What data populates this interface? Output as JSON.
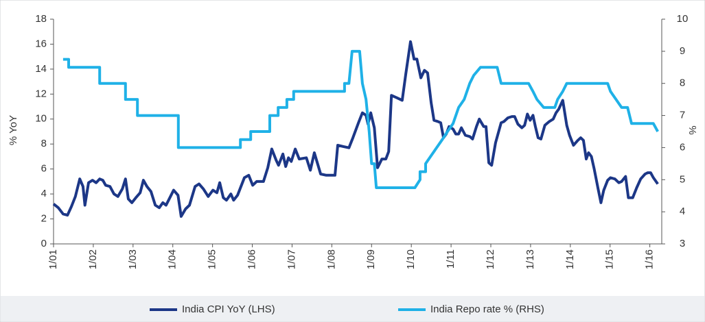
{
  "chart_data": {
    "type": "line",
    "y_label": "% YoY",
    "y2_label": "%",
    "xlim": [
      2001,
      2016.3
    ],
    "xticks": [
      {
        "value": 2001,
        "label": "1/01"
      },
      {
        "value": 2002,
        "label": "1/02"
      },
      {
        "value": 2003,
        "label": "1/03"
      },
      {
        "value": 2004,
        "label": "1/04"
      },
      {
        "value": 2005,
        "label": "1/05"
      },
      {
        "value": 2006,
        "label": "1/06"
      },
      {
        "value": 2007,
        "label": "1/07"
      },
      {
        "value": 2008,
        "label": "1/08"
      },
      {
        "value": 2009,
        "label": "1/09"
      },
      {
        "value": 2010,
        "label": "1/10"
      },
      {
        "value": 2011,
        "label": "1/11"
      },
      {
        "value": 2012,
        "label": "1/12"
      },
      {
        "value": 2013,
        "label": "1/13"
      },
      {
        "value": 2014,
        "label": "1/14"
      },
      {
        "value": 2015,
        "label": "1/15"
      },
      {
        "value": 2016,
        "label": "1/16"
      }
    ],
    "ylim": [
      0,
      18
    ],
    "yticks": [
      0,
      2,
      4,
      6,
      8,
      10,
      12,
      14,
      16,
      18
    ],
    "y2lim": [
      3,
      10
    ],
    "y2ticks": [
      3,
      4,
      5,
      6,
      7,
      8,
      9,
      10
    ],
    "series": [
      {
        "name": "India CPI YoY (LHS)",
        "color": "#1c3787",
        "x": [
          2001.0,
          2001.12,
          2001.24,
          2001.35,
          2001.45,
          2001.55,
          2001.66,
          2001.74,
          2001.79,
          2001.88,
          2001.98,
          2002.07,
          2002.16,
          2002.24,
          2002.31,
          2002.42,
          2002.52,
          2002.62,
          2002.73,
          2002.81,
          2002.88,
          2002.97,
          2003.07,
          2003.18,
          2003.26,
          2003.35,
          2003.45,
          2003.56,
          2003.66,
          2003.75,
          2003.83,
          2003.94,
          2004.02,
          2004.13,
          2004.21,
          2004.32,
          2004.42,
          2004.56,
          2004.66,
          2004.77,
          2004.89,
          2005.01,
          2005.11,
          2005.18,
          2005.27,
          2005.35,
          2005.46,
          2005.53,
          2005.63,
          2005.8,
          2005.91,
          2006.01,
          2006.11,
          2006.28,
          2006.39,
          2006.49,
          2006.6,
          2006.66,
          2006.77,
          2006.84,
          2006.91,
          2006.98,
          2007.08,
          2007.18,
          2007.36,
          2007.46,
          2007.56,
          2007.72,
          2007.86,
          2008.08,
          2008.15,
          2008.29,
          2008.43,
          2008.53,
          2008.67,
          2008.77,
          2008.86,
          2008.91,
          2008.98,
          2009.07,
          2009.15,
          2009.26,
          2009.36,
          2009.43,
          2009.5,
          2009.64,
          2009.77,
          2009.86,
          2009.98,
          2010.07,
          2010.14,
          2010.24,
          2010.33,
          2010.41,
          2010.5,
          2010.57,
          2010.67,
          2010.74,
          2010.81,
          2010.88,
          2010.95,
          2011.05,
          2011.12,
          2011.19,
          2011.26,
          2011.36,
          2011.47,
          2011.54,
          2011.64,
          2011.71,
          2011.82,
          2011.88,
          2011.95,
          2012.02,
          2012.12,
          2012.26,
          2012.33,
          2012.43,
          2012.53,
          2012.6,
          2012.68,
          2012.78,
          2012.85,
          2012.92,
          2012.99,
          2013.06,
          2013.12,
          2013.19,
          2013.26,
          2013.36,
          2013.47,
          2013.57,
          2013.64,
          2013.71,
          2013.81,
          2013.91,
          2013.98,
          2014.08,
          2014.19,
          2014.26,
          2014.33,
          2014.4,
          2014.46,
          2014.53,
          2014.6,
          2014.7,
          2014.77,
          2014.84,
          2014.94,
          2015.01,
          2015.12,
          2015.22,
          2015.29,
          2015.39,
          2015.46,
          2015.57,
          2015.67,
          2015.77,
          2015.88,
          2015.95,
          2016.02,
          2016.09,
          2016.2
        ],
        "values": [
          3.2,
          2.9,
          2.4,
          2.3,
          3.0,
          3.8,
          5.2,
          4.6,
          3.1,
          4.9,
          5.1,
          4.9,
          5.2,
          5.1,
          4.7,
          4.6,
          4.0,
          3.8,
          4.4,
          5.2,
          3.6,
          3.3,
          3.7,
          4.1,
          5.1,
          4.6,
          4.2,
          3.1,
          2.9,
          3.3,
          3.1,
          3.8,
          4.3,
          3.9,
          2.2,
          2.8,
          3.1,
          4.6,
          4.8,
          4.4,
          3.8,
          4.3,
          4.1,
          4.9,
          3.7,
          3.5,
          4.0,
          3.5,
          3.9,
          5.3,
          5.5,
          4.7,
          5.0,
          5.0,
          6.1,
          7.6,
          6.7,
          6.3,
          7.2,
          6.2,
          6.9,
          6.6,
          7.6,
          6.8,
          6.9,
          5.9,
          7.3,
          5.6,
          5.5,
          5.5,
          7.9,
          7.8,
          7.7,
          8.5,
          9.7,
          10.5,
          10.3,
          9.6,
          10.5,
          9.3,
          6.1,
          6.8,
          6.8,
          7.4,
          11.9,
          11.7,
          11.5,
          13.6,
          16.2,
          14.8,
          14.8,
          13.3,
          13.9,
          13.7,
          11.3,
          9.9,
          9.8,
          9.7,
          8.5,
          8.8,
          9.4,
          9.2,
          8.8,
          8.8,
          9.3,
          8.7,
          8.6,
          8.4,
          9.4,
          10.0,
          9.4,
          9.4,
          6.5,
          6.3,
          8.1,
          9.7,
          9.8,
          10.1,
          10.2,
          10.2,
          9.6,
          9.3,
          9.5,
          10.4,
          9.9,
          10.3,
          9.4,
          8.5,
          8.4,
          9.5,
          9.8,
          10.0,
          10.5,
          10.8,
          11.5,
          9.5,
          8.7,
          7.9,
          8.3,
          8.5,
          8.3,
          6.8,
          7.3,
          7.0,
          6.0,
          4.4,
          3.3,
          4.3,
          5.1,
          5.3,
          5.2,
          4.9,
          5.0,
          5.4,
          3.7,
          3.7,
          4.5,
          5.2,
          5.6,
          5.7,
          5.7,
          5.3,
          4.8
        ]
      },
      {
        "name": "India Repo rate % (RHS)",
        "color": "#1fb1e7",
        "axis": "y2",
        "x": [
          2001.24,
          2001.38,
          2001.38,
          2002.16,
          2002.16,
          2002.81,
          2002.81,
          2003.11,
          2003.11,
          2004.14,
          2004.14,
          2005.7,
          2005.7,
          2005.96,
          2005.96,
          2006.44,
          2006.44,
          2006.65,
          2006.65,
          2006.87,
          2006.87,
          2007.04,
          2007.04,
          2008.32,
          2008.32,
          2008.43,
          2008.51,
          2008.7,
          2008.77,
          2008.86,
          2008.94,
          2009.0,
          2009.07,
          2009.12,
          2010.09,
          2010.22,
          2010.22,
          2010.36,
          2010.36,
          2010.5,
          2010.64,
          2010.78,
          2010.91,
          2011.05,
          2011.19,
          2011.33,
          2011.47,
          2011.57,
          2011.74,
          2012.16,
          2012.26,
          2012.95,
          2013.06,
          2013.16,
          2013.33,
          2013.61,
          2013.68,
          2013.81,
          2013.91,
          2014.94,
          2015.01,
          2015.15,
          2015.29,
          2015.44,
          2015.54,
          2016.09,
          2016.2
        ],
        "values": [
          8.75,
          8.75,
          8.5,
          8.5,
          8.0,
          8.0,
          7.5,
          7.5,
          7.0,
          7.0,
          6.0,
          6.0,
          6.25,
          6.25,
          6.5,
          6.5,
          7.0,
          7.0,
          7.25,
          7.25,
          7.5,
          7.5,
          7.75,
          7.75,
          8.0,
          8.0,
          9.0,
          9.0,
          8.0,
          7.5,
          6.5,
          5.5,
          5.5,
          4.75,
          4.75,
          5.0,
          5.25,
          5.25,
          5.5,
          5.75,
          6.0,
          6.25,
          6.5,
          6.75,
          7.25,
          7.5,
          8.0,
          8.25,
          8.5,
          8.5,
          8.0,
          8.0,
          7.75,
          7.5,
          7.25,
          7.25,
          7.5,
          7.75,
          8.0,
          8.0,
          7.75,
          7.5,
          7.25,
          7.25,
          6.75,
          6.75,
          6.5
        ]
      }
    ]
  }
}
